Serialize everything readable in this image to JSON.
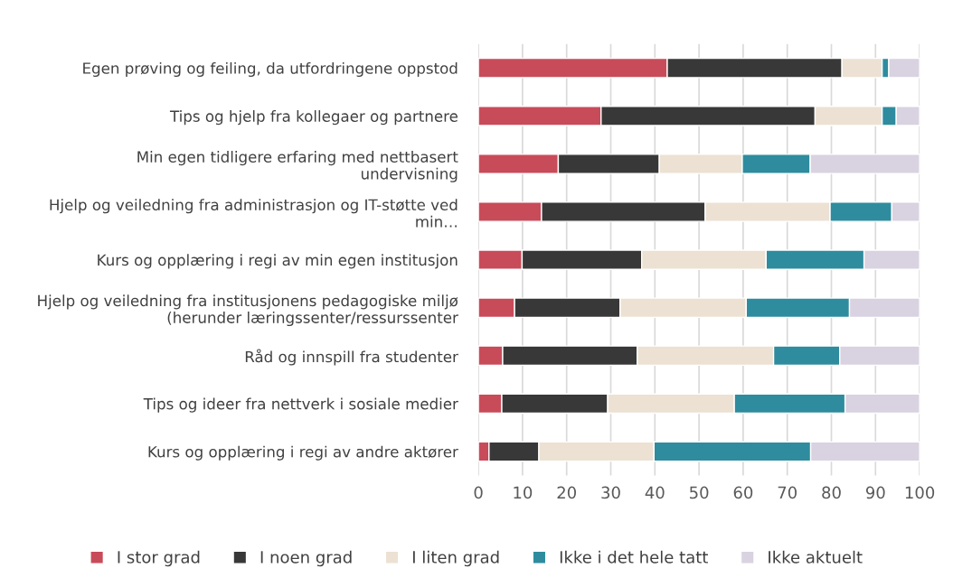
{
  "chart_data": {
    "type": "bar",
    "orientation": "horizontal",
    "stacked": true,
    "categories": [
      "Egen prøving og feiling, da utfordringene oppstod",
      "Tips og hjelp fra kollegaer og partnere",
      "Min egen tidligere erfaring med nettbasert\nundervisning",
      "Hjelp og veiledning fra administrasjon og IT-støtte ved\nmin…",
      "Kurs og opplæring i regi av min egen institusjon",
      "Hjelp og veiledning fra institusjonens pedagogiske miljø\n(herunder læringssenter/ressurssenter",
      "Råd og innspill fra studenter",
      "Tips og ideer fra nettverk i sosiale medier",
      "Kurs og opplæring i regi av andre aktører"
    ],
    "series": [
      {
        "name": "I stor grad",
        "color": "#c84b5a",
        "values": [
          42.8,
          27.8,
          18.1,
          14.3,
          9.9,
          8.2,
          5.5,
          5.3,
          2.4
        ]
      },
      {
        "name": "I noen grad",
        "color": "#383838",
        "values": [
          39.6,
          48.5,
          22.9,
          37.1,
          27.1,
          23.9,
          30.5,
          24.0,
          11.3
        ]
      },
      {
        "name": "I liten grad",
        "color": "#ece1d3",
        "values": [
          9.1,
          15.2,
          18.8,
          28.3,
          28.2,
          28.6,
          30.9,
          28.7,
          26.1
        ]
      },
      {
        "name": "Ikke i det hele tatt",
        "color": "#2e8c9e",
        "values": [
          1.5,
          3.2,
          15.4,
          14.0,
          22.2,
          23.4,
          15.0,
          25.1,
          35.5
        ]
      },
      {
        "name": "Ikke aktuelt",
        "color": "#d9d2e0",
        "values": [
          7.0,
          5.3,
          24.8,
          6.3,
          12.6,
          15.9,
          18.1,
          16.9,
          24.7
        ]
      }
    ],
    "xlim": [
      0,
      100
    ],
    "xticks": [
      0,
      10,
      20,
      30,
      40,
      50,
      60,
      70,
      80,
      90,
      100
    ],
    "grid": "x",
    "legend": "bottom"
  }
}
